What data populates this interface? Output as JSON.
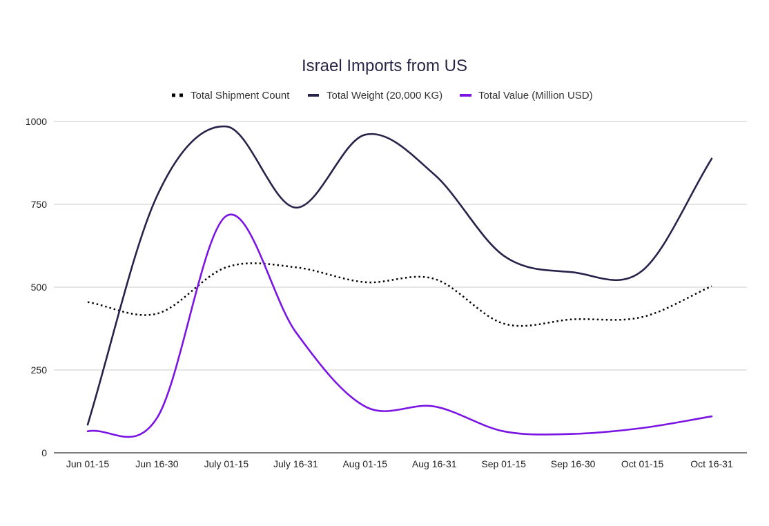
{
  "chart_data": {
    "type": "line",
    "title": "Israel Imports from US",
    "xlabel": "",
    "ylabel": "",
    "ylim": [
      0,
      1000
    ],
    "yticks": [
      0,
      250,
      500,
      750,
      1000
    ],
    "grid": true,
    "legend_position": "top-center",
    "categories": [
      "Jun 01-15",
      "Jun 16-30",
      "July 01-15",
      "July 16-31",
      "Aug 01-15",
      "Aug 16-31",
      "Sep 01-15",
      "Sep 16-30",
      "Oct 01-15",
      "Oct 16-31"
    ],
    "series": [
      {
        "name": "Total Shipment Count",
        "color": "#000000",
        "style": "dotted",
        "values": [
          455,
          420,
          560,
          560,
          515,
          525,
          390,
          403,
          410,
          503
        ]
      },
      {
        "name": "Total Weight (20,000 KG)",
        "color": "#26224a",
        "style": "solid",
        "values": [
          85,
          775,
          985,
          740,
          960,
          840,
          595,
          545,
          550,
          888
        ]
      },
      {
        "name": "Total Value (Million USD)",
        "color": "#7a14e3",
        "style": "solid",
        "values": [
          65,
          105,
          715,
          365,
          140,
          140,
          65,
          57,
          75,
          110
        ]
      }
    ]
  }
}
